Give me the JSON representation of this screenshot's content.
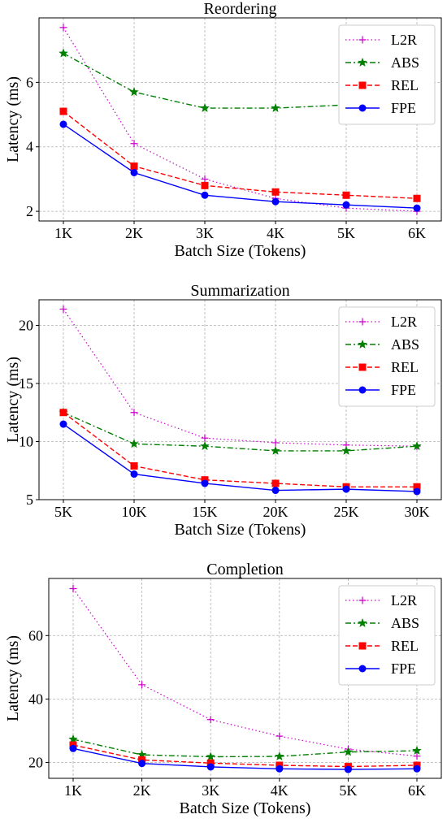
{
  "series_styles": [
    {
      "key": "L2R",
      "color": "#cc00cc",
      "dash": "1.5 3",
      "width": 1.2,
      "marker": "plus"
    },
    {
      "key": "ABS",
      "color": "#008000",
      "dash": "7 3 2 3",
      "width": 1.4,
      "marker": "star"
    },
    {
      "key": "REL",
      "color": "#ff0000",
      "dash": "6 3",
      "width": 1.4,
      "marker": "square"
    },
    {
      "key": "FPE",
      "color": "#0000ff",
      "dash": "",
      "width": 1.4,
      "marker": "circle"
    }
  ],
  "chart_data": [
    {
      "type": "line",
      "title": "Reordering",
      "xlabel": "Batch Size (Tokens)",
      "ylabel": "Latency (ms)",
      "categories": [
        "1K",
        "2K",
        "3K",
        "4K",
        "5K",
        "6K"
      ],
      "yticks": [
        2,
        4,
        6
      ],
      "ylim": [
        1.7,
        8.0
      ],
      "grid": true,
      "legend": "top-right",
      "series": [
        {
          "name": "L2R",
          "values": [
            7.7,
            4.1,
            3.0,
            2.4,
            2.1,
            2.0
          ]
        },
        {
          "name": "ABS",
          "values": [
            6.9,
            5.7,
            5.2,
            5.2,
            5.3,
            5.3
          ]
        },
        {
          "name": "REL",
          "values": [
            5.1,
            3.4,
            2.8,
            2.6,
            2.5,
            2.4
          ]
        },
        {
          "name": "FPE",
          "values": [
            4.7,
            3.2,
            2.5,
            2.3,
            2.2,
            2.1
          ]
        }
      ]
    },
    {
      "type": "line",
      "title": "Summarization",
      "xlabel": "Batch Size (Tokens)",
      "ylabel": "Latency (ms)",
      "categories": [
        "5K",
        "10K",
        "15K",
        "20K",
        "25K",
        "30K"
      ],
      "yticks": [
        5,
        10,
        15,
        20
      ],
      "ylim": [
        5,
        22.2
      ],
      "grid": true,
      "legend": "top-right",
      "series": [
        {
          "name": "L2R",
          "values": [
            21.4,
            12.5,
            10.3,
            9.9,
            9.7,
            9.6
          ]
        },
        {
          "name": "ABS",
          "values": [
            12.5,
            9.8,
            9.6,
            9.2,
            9.2,
            9.6
          ]
        },
        {
          "name": "REL",
          "values": [
            12.5,
            7.9,
            6.7,
            6.4,
            6.1,
            6.1
          ]
        },
        {
          "name": "FPE",
          "values": [
            11.5,
            7.2,
            6.4,
            5.8,
            5.9,
            5.7
          ]
        }
      ]
    },
    {
      "type": "line",
      "title": "Completion",
      "xlabel": "Batch Size (Tokens)",
      "ylabel": "Latency (ms)",
      "categories": [
        "1K",
        "2K",
        "3K",
        "4K",
        "5K",
        "6K"
      ],
      "yticks": [
        20,
        40,
        60
      ],
      "ylim": [
        15,
        78
      ],
      "grid": true,
      "legend": "top-right",
      "series": [
        {
          "name": "L2R",
          "values": [
            74.8,
            44.5,
            33.5,
            28.3,
            24.2,
            22.0
          ]
        },
        {
          "name": "ABS",
          "values": [
            27.3,
            22.4,
            21.8,
            21.9,
            23.3,
            23.7
          ]
        },
        {
          "name": "REL",
          "values": [
            25.5,
            20.8,
            19.8,
            19.1,
            18.7,
            19.1
          ]
        },
        {
          "name": "FPE",
          "values": [
            24.4,
            19.7,
            18.6,
            18.0,
            17.8,
            18.0
          ]
        }
      ]
    }
  ]
}
